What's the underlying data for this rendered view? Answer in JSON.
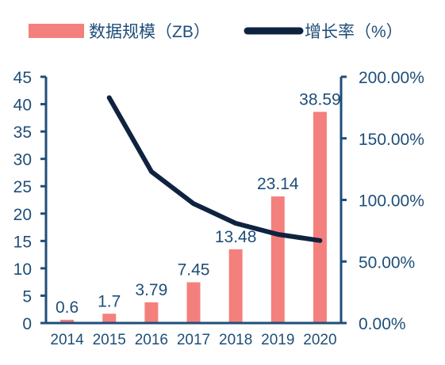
{
  "colors": {
    "bar": "#F4807E",
    "line": "#0F2340",
    "axis": "#1F4E79",
    "text": "#1F4E79"
  },
  "chart_data": {
    "type": "bar",
    "categories": [
      "2014",
      "2015",
      "2016",
      "2017",
      "2018",
      "2019",
      "2020"
    ],
    "series": [
      {
        "name": "数据规模（ZB）",
        "type": "bar",
        "axis": "left",
        "values": [
          0.6,
          1.7,
          3.79,
          7.45,
          13.48,
          23.14,
          38.59
        ],
        "labels": [
          "0.6",
          "1.7",
          "3.79",
          "7.45",
          "13.48",
          "23.14",
          "38.59"
        ]
      },
      {
        "name": "增长率（%）",
        "type": "line",
        "axis": "right",
        "values": [
          null,
          183,
          123,
          97,
          81,
          72,
          67
        ]
      }
    ],
    "left_axis": {
      "min": 0,
      "max": 45,
      "ticks": [
        0,
        5,
        10,
        15,
        20,
        25,
        30,
        35,
        40,
        45
      ],
      "tick_labels": [
        "0",
        "5",
        "10",
        "15",
        "20",
        "25",
        "30",
        "35",
        "40",
        "45"
      ]
    },
    "right_axis": {
      "min": 0,
      "max": 200,
      "ticks": [
        0,
        50,
        100,
        150,
        200
      ],
      "tick_labels": [
        "0.00%",
        "50.00%",
        "100.00%",
        "150.00%",
        "200.00%"
      ]
    },
    "title": "",
    "xlabel": "",
    "ylabel": "",
    "grid": false,
    "legend_position": "top"
  }
}
